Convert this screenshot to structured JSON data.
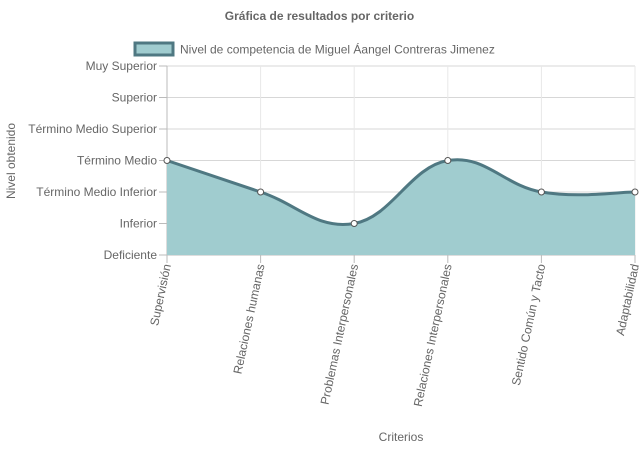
{
  "chart_data": {
    "type": "area",
    "title": "Gráfica de resultados por criterio",
    "xlabel": "Criterios",
    "ylabel": "Nivel obtenido",
    "levels": [
      "Deficiente",
      "Inferior",
      "Término Medio Inferior",
      "Término Medio",
      "Término Medio Superior",
      "Superior",
      "Muy Superior"
    ],
    "categories": [
      "Supervisión",
      "Relaciones humanas",
      "Problemas Interpersonales",
      "Relaciones Interpersonales",
      "Sentido Común y Tacto",
      "Adaptabilidad"
    ],
    "series": [
      {
        "name": "Nivel de competencia de Miguel Áangel Contreras Jimenez",
        "values": [
          3,
          2,
          1,
          3,
          2,
          2
        ],
        "value_labels": [
          "Término Medio",
          "Término Medio Inferior",
          "Inferior",
          "Término Medio",
          "Término Medio Inferior",
          "Término Medio Inferior"
        ],
        "fill_color": "#a0cccf",
        "line_color": "#4f7882"
      }
    ],
    "ylim": [
      0,
      6
    ],
    "grid": true,
    "legend_position": "top"
  }
}
